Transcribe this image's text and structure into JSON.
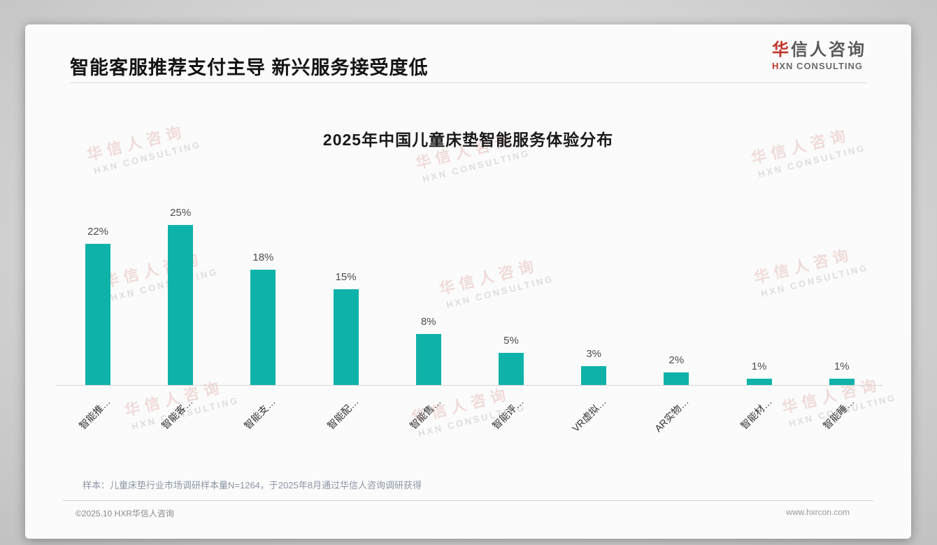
{
  "header": {
    "title": "智能客服推荐支付主导 新兴服务接受度低",
    "logo": {
      "cn_first": "华",
      "cn_rest": "信人咨询",
      "en_first": "H",
      "en_rest": "XN CONSULTING"
    }
  },
  "watermark": {
    "cn": "华信人咨询",
    "en": "HXN CONSULTING"
  },
  "chart_data": {
    "type": "bar",
    "title": "2025年中国儿童床垫智能服务体验分布",
    "categories": [
      "智能推…",
      "智能客…",
      "智能支…",
      "智能配…",
      "智能售…",
      "智能评…",
      "VR虚拟…",
      "AR实物…",
      "智能材…",
      "智能睡…"
    ],
    "values": [
      22,
      25,
      18,
      15,
      8,
      5,
      3,
      2,
      1,
      1
    ],
    "value_labels": [
      "22%",
      "25%",
      "18%",
      "15%",
      "8%",
      "5%",
      "3%",
      "2%",
      "1%",
      "1%"
    ],
    "xlabel": "",
    "ylabel": "",
    "ylim": [
      0,
      27
    ],
    "grid": false,
    "legend": "none",
    "bar_color": "#0fb2a8",
    "x_labels_rotated_degrees": 45
  },
  "footnote": "样本：儿童床垫行业市场调研样本量N=1264，于2025年8月通过华信人咨询调研获得",
  "footer": {
    "left": "©2025.10 HXR华信人咨询",
    "right": "www.hxrcon.com"
  },
  "colors": {
    "accent_red": "#c0362a",
    "bar_teal": "#0fb2a8",
    "card_bg": "#fbfbfb"
  }
}
